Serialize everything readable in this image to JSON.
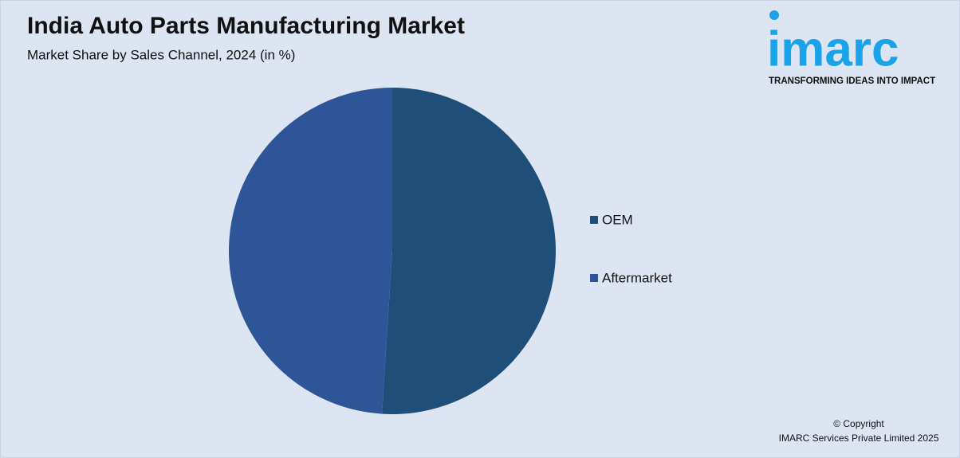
{
  "chart_data": {
    "type": "pie",
    "title": "India Auto Parts Manufacturing Market",
    "subtitle": "Market Share by Sales Channel, 2024 (in %)",
    "categories": [
      "OEM",
      "Aftermarket"
    ],
    "values": [
      51,
      49
    ],
    "colors": [
      "#1f4e79",
      "#2e5597"
    ],
    "legend": "right",
    "brand": {
      "name": "imarc",
      "tagline": "TRANSFORMING IDEAS INTO IMPACT"
    },
    "copyright": [
      "© Copyright",
      "IMARC Services Private Limited 2025"
    ]
  }
}
